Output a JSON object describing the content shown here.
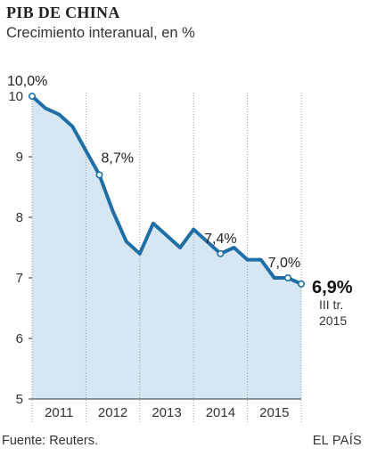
{
  "header": {
    "title": "PIB DE CHINA",
    "subtitle": "Crecimiento interanual, en %"
  },
  "footer": {
    "source": "Fuente: Reuters.",
    "brand": "EL PAÍS"
  },
  "colors": {
    "line": "#1f6fa6",
    "area": "#d6e6f3",
    "grid": "#9a9a9a",
    "text": "#222222"
  },
  "chart_data": {
    "type": "area",
    "title": "PIB DE CHINA",
    "subtitle": "Crecimiento interanual, en %",
    "xlabel": "",
    "ylabel": "",
    "ylim": [
      5,
      10
    ],
    "yticks": [
      5,
      6,
      7,
      8,
      9,
      10
    ],
    "xlim": [
      2010.625,
      2015.625
    ],
    "xticks": [
      {
        "label": "2011",
        "value": 2011.125
      },
      {
        "label": "2012",
        "value": 2012.125
      },
      {
        "label": "2013",
        "value": 2013.125
      },
      {
        "label": "2014",
        "value": 2014.125
      },
      {
        "label": "2015",
        "value": 2015.125
      }
    ],
    "grid": "vertical",
    "x": [
      "III 2010",
      "IV 2010",
      "I 2011",
      "II 2011",
      "III 2011",
      "IV 2011",
      "I 2012",
      "II 2012",
      "III 2012",
      "IV 2012",
      "I 2013",
      "II 2013",
      "III 2013",
      "IV 2013",
      "I 2014",
      "II 2014",
      "III 2014",
      "IV 2014",
      "I 2015",
      "II 2015",
      "III 2015"
    ],
    "series": [
      {
        "values": [
          10.0,
          9.8,
          9.7,
          9.5,
          9.1,
          8.7,
          8.1,
          7.6,
          7.4,
          7.9,
          7.7,
          7.5,
          7.8,
          7.6,
          7.4,
          7.5,
          7.3,
          7.3,
          7.0,
          7.0,
          6.9
        ]
      }
    ],
    "annotations": [
      {
        "index": 0,
        "label": "10,0%"
      },
      {
        "index": 5,
        "label": "8,7%"
      },
      {
        "index": 14,
        "label": "7,4%"
      },
      {
        "index": 19,
        "label": "7,0%"
      },
      {
        "index": 20,
        "label": "6,9%",
        "note_line1": "III tr.",
        "note_line2": "2015"
      }
    ]
  }
}
